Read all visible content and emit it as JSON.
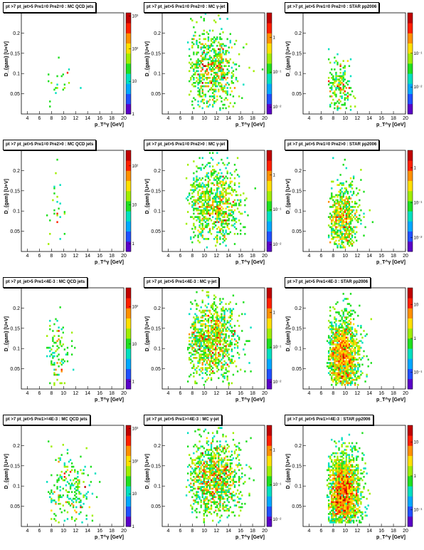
{
  "axes": {
    "xlabel": "p_T^γ [GeV]",
    "ylabel": "D_{gam} [U+V]",
    "xticks": [
      4,
      6,
      8,
      10,
      12,
      14,
      16,
      18,
      20
    ],
    "xtick_labels": [
      "4",
      "6",
      "8",
      "10",
      "12",
      "14",
      "16",
      "18",
      "20"
    ],
    "yticks": [
      0.05,
      0.1,
      0.15,
      0.2
    ],
    "ytick_labels": [
      "0.05",
      "0.1",
      "0.15",
      "0.2"
    ],
    "xlim": [
      3,
      20
    ],
    "ylim": [
      0,
      0.25
    ]
  },
  "colors": {
    "palette": [
      "#5b00c8",
      "#2050ff",
      "#00a8ff",
      "#00e0c0",
      "#20e020",
      "#a0ee00",
      "#ffe000",
      "#ff9000",
      "#ff2000",
      "#c00000"
    ]
  },
  "panels": [
    {
      "title": "pt >7 pt_jet>5 Pre1=0 Pre2=0 : MC QCD jets",
      "zticks": [
        "1",
        "10",
        "10²",
        "10³"
      ],
      "zmin_log": 0,
      "zmax_log": 3.1,
      "count": 22,
      "cx": 9.0,
      "cy": 0.08,
      "sx": 2.0,
      "sy": 0.03
    },
    {
      "title": "pt >7 pt_jet>5 Pre1=0 Pre2=0 : MC γ-jet",
      "zticks": [
        "10⁻²",
        "10⁻¹",
        "1"
      ],
      "zmin_log": -2.2,
      "zmax_log": 0.7,
      "count": 700,
      "cx": 10.5,
      "cy": 0.11,
      "sx": 3.6,
      "sy": 0.05
    },
    {
      "title": "pt >7 pt_jet>5 Pre1=0 Pre2=0 : STAR pp2006",
      "zticks": [
        "10⁻²",
        "10⁻¹"
      ],
      "zmin_log": -2.8,
      "zmax_log": 0.2,
      "count": 190,
      "cx": 8.6,
      "cy": 0.07,
      "sx": 1.9,
      "sy": 0.035
    },
    {
      "title": "pt >7 pt_jet>5 Pre1=0 Pre2>0 : MC QCD jets",
      "zticks": [
        "1",
        "10",
        "10²"
      ],
      "zmin_log": -0.2,
      "zmax_log": 2.4,
      "count": 28,
      "cx": 8.4,
      "cy": 0.09,
      "sx": 1.6,
      "sy": 0.04
    },
    {
      "title": "pt >7 pt_jet>5 Pre1=0 Pre2>0 : MC γ-jet",
      "zticks": [
        "10⁻²",
        "10⁻¹",
        "1"
      ],
      "zmin_log": -2.2,
      "zmax_log": 0.7,
      "count": 900,
      "cx": 10.8,
      "cy": 0.12,
      "sx": 3.8,
      "sy": 0.05
    },
    {
      "title": "pt >7 pt_jet>5 Pre1=0 Pre2>0 : STAR pp2006",
      "zticks": [
        "10⁻²",
        "10⁻¹",
        "1"
      ],
      "zmin_log": -2.4,
      "zmax_log": 0.5,
      "count": 700,
      "cx": 9.0,
      "cy": 0.08,
      "sx": 2.4,
      "sy": 0.045
    },
    {
      "title": "pt >7 pt_jet>5 Pre1<4E-3 : MC QCD jets",
      "zticks": [
        "1",
        "10",
        "10²"
      ],
      "zmin_log": -0.2,
      "zmax_log": 2.5,
      "count": 110,
      "cx": 8.8,
      "cy": 0.08,
      "sx": 2.0,
      "sy": 0.045
    },
    {
      "title": "pt >7 pt_jet>5 Pre1<4E-3 : MC γ-jet",
      "zticks": [
        "10⁻²",
        "10⁻¹",
        "1"
      ],
      "zmin_log": -2.2,
      "zmax_log": 0.7,
      "count": 1100,
      "cx": 10.5,
      "cy": 0.12,
      "sx": 3.6,
      "sy": 0.05
    },
    {
      "title": "pt >7 pt_jet>5 Pre1<4E-3 : STAR pp2006",
      "zticks": [
        "10⁻¹",
        "1",
        "10"
      ],
      "zmin_log": -1.5,
      "zmax_log": 1.5,
      "count": 1600,
      "cx": 9.0,
      "cy": 0.08,
      "sx": 2.6,
      "sy": 0.05
    },
    {
      "title": "pt >7 pt_jet>5 Pre1>=4E-3 : MC QCD jets",
      "zticks": [
        "1",
        "10",
        "10²",
        "10³"
      ],
      "zmin_log": 0,
      "zmax_log": 3.1,
      "count": 230,
      "cx": 10.0,
      "cy": 0.09,
      "sx": 3.2,
      "sy": 0.05
    },
    {
      "title": "pt >7 pt_jet>5 Pre1>=4E-3 : MC γ-jet",
      "zticks": [
        "10⁻²",
        "10⁻¹",
        "1"
      ],
      "zmin_log": -2.2,
      "zmax_log": 0.7,
      "count": 1100,
      "cx": 10.8,
      "cy": 0.12,
      "sx": 3.8,
      "sy": 0.05
    },
    {
      "title": "pt >7 pt_jet>5 Pre1>=4E-3 : STAR pp2006",
      "zticks": [
        "10⁻¹",
        "1",
        "10"
      ],
      "zmin_log": -1.5,
      "zmax_log": 1.5,
      "count": 2000,
      "cx": 9.0,
      "cy": 0.08,
      "sx": 2.7,
      "sy": 0.05
    }
  ],
  "chart_data": [
    {
      "type": "heatmap",
      "title": "pt >7 pt_jet>5 Pre1=0 Pre2=0 : MC QCD jets",
      "xlabel": "p_T^γ [GeV]",
      "ylabel": "D_{gam} [U+V]",
      "xlim": [
        3,
        20
      ],
      "ylim": [
        0,
        0.25
      ],
      "z_scale": "log",
      "z_range": [
        1,
        1000
      ],
      "colorbar_ticks": [
        "1",
        "10",
        "10²",
        "10³"
      ],
      "sparse_cells": 22
    },
    {
      "type": "heatmap",
      "title": "pt >7 pt_jet>5 Pre1=0 Pre2=0 : MC γ-jet",
      "xlabel": "p_T^γ [GeV]",
      "ylabel": "D_{gam} [U+V]",
      "xlim": [
        3,
        20
      ],
      "ylim": [
        0,
        0.25
      ],
      "z_scale": "log",
      "z_range": [
        0.006,
        5
      ],
      "colorbar_ticks": [
        "10⁻²",
        "10⁻¹",
        "1"
      ]
    },
    {
      "type": "heatmap",
      "title": "pt >7 pt_jet>5 Pre1=0 Pre2=0 : STAR pp2006",
      "xlabel": "p_T^γ [GeV]",
      "ylabel": "D_{gam} [U+V]",
      "xlim": [
        3,
        20
      ],
      "ylim": [
        0,
        0.25
      ],
      "z_scale": "log",
      "z_range": [
        0.0015,
        1.5
      ],
      "colorbar_ticks": [
        "10⁻²",
        "10⁻¹"
      ]
    },
    {
      "type": "heatmap",
      "title": "pt >7 pt_jet>5 Pre1=0 Pre2>0 : MC QCD jets",
      "xlabel": "p_T^γ [GeV]",
      "ylabel": "D_{gam} [U+V]",
      "xlim": [
        3,
        20
      ],
      "ylim": [
        0,
        0.25
      ],
      "z_scale": "log",
      "z_range": [
        0.6,
        250
      ],
      "colorbar_ticks": [
        "1",
        "10",
        "10²"
      ]
    },
    {
      "type": "heatmap",
      "title": "pt >7 pt_jet>5 Pre1=0 Pre2>0 : MC γ-jet",
      "xlabel": "p_T^γ [GeV]",
      "ylabel": "D_{gam} [U+V]",
      "xlim": [
        3,
        20
      ],
      "ylim": [
        0,
        0.25
      ],
      "z_scale": "log",
      "z_range": [
        0.006,
        5
      ],
      "colorbar_ticks": [
        "10⁻²",
        "10⁻¹",
        "1"
      ]
    },
    {
      "type": "heatmap",
      "title": "pt >7 pt_jet>5 Pre1=0 Pre2>0 : STAR pp2006",
      "xlabel": "p_T^γ [GeV]",
      "ylabel": "D_{gam} [U+V]",
      "xlim": [
        3,
        20
      ],
      "ylim": [
        0,
        0.25
      ],
      "z_scale": "log",
      "z_range": [
        0.004,
        3
      ],
      "colorbar_ticks": [
        "10⁻²",
        "10⁻¹",
        "1"
      ]
    },
    {
      "type": "heatmap",
      "title": "pt >7 pt_jet>5 Pre1<4E-3 : MC QCD jets",
      "xlabel": "p_T^γ [GeV]",
      "ylabel": "D_{gam} [U+V]",
      "xlim": [
        3,
        20
      ],
      "ylim": [
        0,
        0.25
      ],
      "z_scale": "log",
      "z_range": [
        0.6,
        300
      ],
      "colorbar_ticks": [
        "1",
        "10",
        "10²"
      ]
    },
    {
      "type": "heatmap",
      "title": "pt >7 pt_jet>5 Pre1<4E-3 : MC γ-jet",
      "xlabel": "p_T^γ [GeV]",
      "ylabel": "D_{gam} [U+V]",
      "xlim": [
        3,
        20
      ],
      "ylim": [
        0,
        0.25
      ],
      "z_scale": "log",
      "z_range": [
        0.006,
        5
      ],
      "colorbar_ticks": [
        "10⁻²",
        "10⁻¹",
        "1"
      ]
    },
    {
      "type": "heatmap",
      "title": "pt >7 pt_jet>5 Pre1<4E-3 : STAR pp2006",
      "xlabel": "p_T^γ [GeV]",
      "ylabel": "D_{gam} [U+V]",
      "xlim": [
        3,
        20
      ],
      "ylim": [
        0,
        0.25
      ],
      "z_scale": "log",
      "z_range": [
        0.03,
        30
      ],
      "colorbar_ticks": [
        "10⁻¹",
        "1",
        "10"
      ]
    },
    {
      "type": "heatmap",
      "title": "pt >7 pt_jet>5 Pre1>=4E-3 : MC QCD jets",
      "xlabel": "p_T^γ [GeV]",
      "ylabel": "D_{gam} [U+V]",
      "xlim": [
        3,
        20
      ],
      "ylim": [
        0,
        0.25
      ],
      "z_scale": "log",
      "z_range": [
        1,
        1000
      ],
      "colorbar_ticks": [
        "1",
        "10",
        "10²",
        "10³"
      ]
    },
    {
      "type": "heatmap",
      "title": "pt >7 pt_jet>5 Pre1>=4E-3 : MC γ-jet",
      "xlabel": "p_T^γ [GeV]",
      "ylabel": "D_{gam} [U+V]",
      "xlim": [
        3,
        20
      ],
      "ylim": [
        0,
        0.25
      ],
      "z_scale": "log",
      "z_range": [
        0.006,
        5
      ],
      "colorbar_ticks": [
        "10⁻²",
        "10⁻¹",
        "1"
      ]
    },
    {
      "type": "heatmap",
      "title": "pt >7 pt_jet>5 Pre1>=4E-3 : STAR pp2006",
      "xlabel": "p_T^γ [GeV]",
      "ylabel": "D_{gam} [U+V]",
      "xlim": [
        3,
        20
      ],
      "ylim": [
        0,
        0.25
      ],
      "z_scale": "log",
      "z_range": [
        0.03,
        30
      ],
      "colorbar_ticks": [
        "10⁻¹",
        "1",
        "10"
      ]
    }
  ]
}
